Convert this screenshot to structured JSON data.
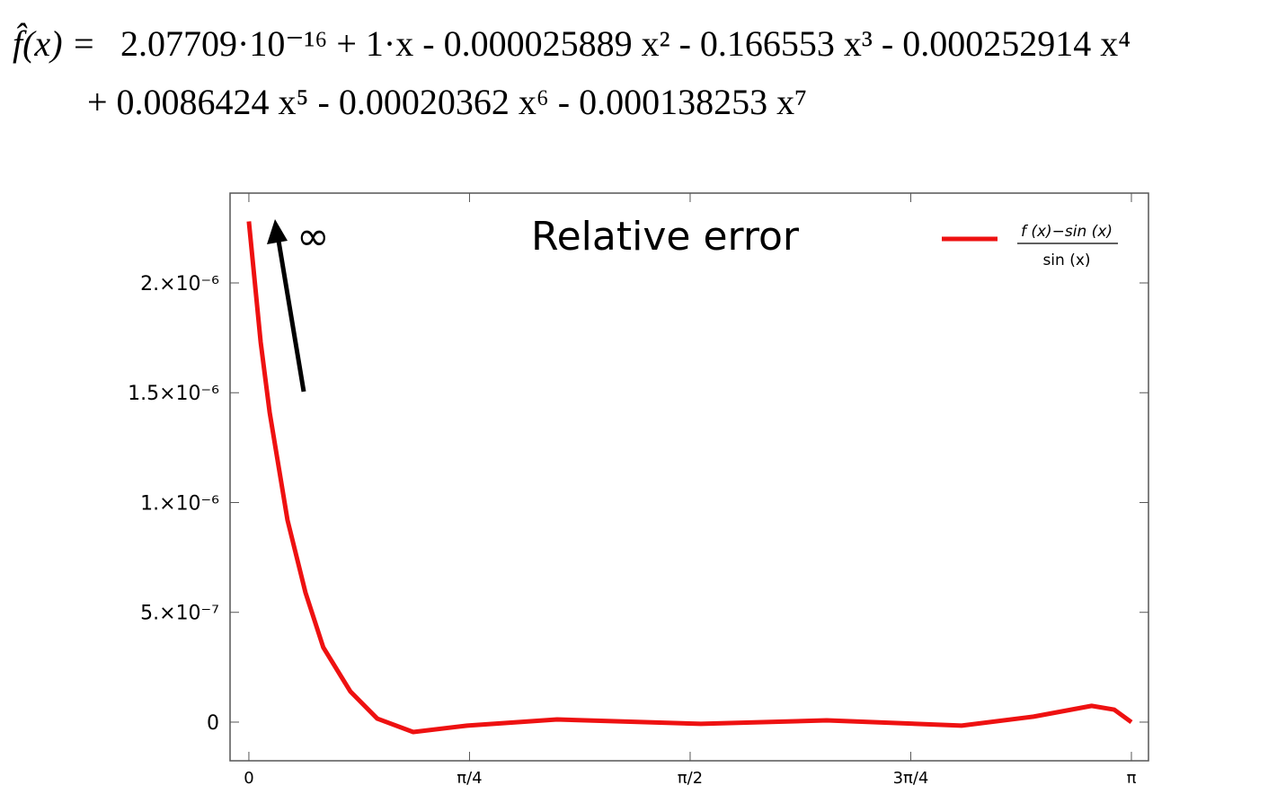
{
  "formula": {
    "lhs": "f̂(x) =",
    "line1": "2.07709·10⁻¹⁶ + 1·x - 0.000025889 x² - 0.166553 x³ - 0.000252914 x⁴",
    "line2": "+ 0.0086424 x⁵ - 0.00020362 x⁶ - 0.000138253 x⁷"
  },
  "chart_data": {
    "type": "line",
    "title": "Relative error",
    "annotation": "∞",
    "legend_label": {
      "numerator": "f (x)−sin (x)",
      "denominator": "sin (x)"
    },
    "legend_position": "top-right",
    "x": [
      0.0,
      0.042,
      0.074,
      0.1375,
      0.2015,
      0.265,
      0.361,
      0.457,
      0.585,
      0.777,
      1.097,
      1.609,
      2.057,
      2.537,
      2.793,
      3.0,
      3.08,
      3.1416
    ],
    "series": [
      {
        "color": "#ee1111",
        "values": [
          2.28e-06,
          1.73e-06,
          1.41e-06,
          9.2e-07,
          5.9e-07,
          3.4e-07,
          1.4e-07,
          1.6e-08,
          -4.5e-08,
          -1.6e-08,
          1.2e-08,
          -8e-09,
          8e-09,
          -1.6e-08,
          2.5e-08,
          7.4e-08,
          5.7e-08,
          0
        ]
      }
    ],
    "xlim": [
      -0.067,
      3.2024
    ],
    "ylim": [
      -1.76e-07,
      2.409e-06
    ],
    "xticks": [
      {
        "value": 0,
        "label": "0"
      },
      {
        "value": 0.7854,
        "label": "π/4"
      },
      {
        "value": 1.5708,
        "label": "π/2"
      },
      {
        "value": 2.3562,
        "label": "3π/4"
      },
      {
        "value": 3.1416,
        "label": "π"
      }
    ],
    "yticks": [
      {
        "value": 0,
        "label": "0"
      },
      {
        "value": 5e-07,
        "label": "5.×10⁻⁷"
      },
      {
        "value": 1e-06,
        "label": "1.×10⁻⁶"
      },
      {
        "value": 1.5e-06,
        "label": "1.5×10⁻⁶"
      },
      {
        "value": 2e-06,
        "label": "2.×10⁻⁶"
      }
    ]
  }
}
